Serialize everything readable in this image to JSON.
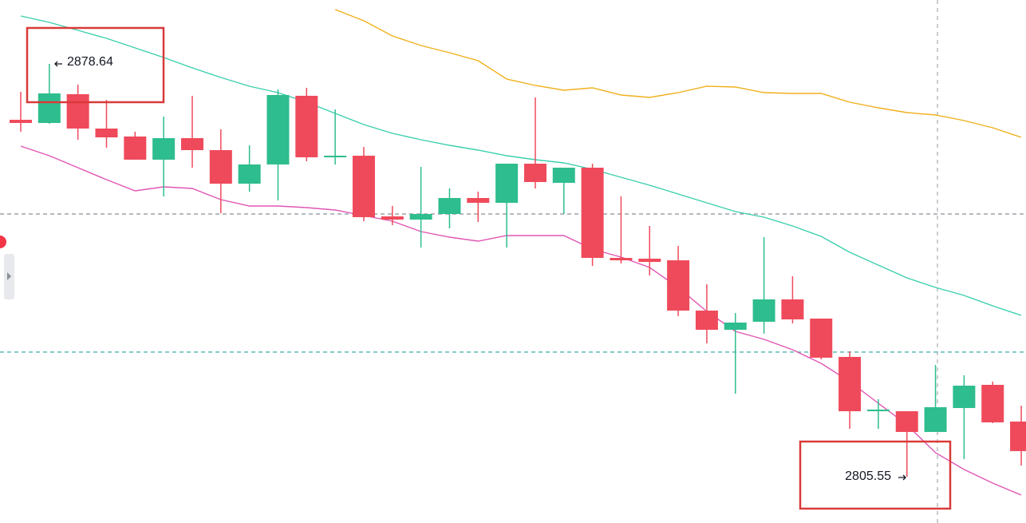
{
  "chart_data": {
    "type": "candlestick",
    "ylim": [
      2797.35,
      2889.95
    ],
    "up_color": "#2ebd8e",
    "down_color": "#ef4a5b",
    "open": [
      2868.74,
      2868.18,
      2873.27,
      2867.19,
      2865.78,
      2861.68,
      2865.49,
      2863.37,
      2857.43,
      2860.83,
      2872.99,
      2862.1,
      2862.38,
      2851.64,
      2851.07,
      2852.06,
      2854.89,
      2854.04,
      2860.97,
      2857.58,
      2860.26,
      2844.29,
      2844.15,
      2843.86,
      2834.96,
      2831.56,
      2832.98,
      2836.94,
      2833.54,
      2826.76,
      2817.14,
      2817.14,
      2813.47,
      2817.71,
      2821.81,
      2815.31
    ],
    "high": [
      2873.69,
      2878.64,
      2874.96,
      2872.28,
      2866.62,
      2869.31,
      2872.99,
      2867.05,
      2864.22,
      2874.12,
      2874.4,
      2870.58,
      2863.94,
      2853.48,
      2860.4,
      2856.59,
      2856.02,
      2860.97,
      2872.7,
      2860.26,
      2860.97,
      2855.17,
      2849.94,
      2846.41,
      2839.62,
      2834.53,
      2847.96,
      2841.04,
      2833.54,
      2827.75,
      2819.26,
      2817.14,
      2825.34,
      2823.51,
      2822.38,
      2818.13
    ],
    "low": [
      2866.62,
      2868.04,
      2865.21,
      2863.8,
      2861.68,
      2855.17,
      2860.26,
      2852.2,
      2856.02,
      2854.47,
      2861.39,
      2860.83,
      2850.79,
      2850.08,
      2846.13,
      2849.52,
      2850.65,
      2846.13,
      2856.59,
      2852.06,
      2842.87,
      2843.3,
      2841.18,
      2833.97,
      2829.16,
      2820.25,
      2830.86,
      2832.7,
      2826.33,
      2814.03,
      2814.03,
      2805.55,
      2813.47,
      2808.66,
      2815.03,
      2807.53
    ],
    "close": [
      2868.18,
      2873.41,
      2867.19,
      2865.63,
      2861.68,
      2865.49,
      2863.37,
      2857.43,
      2860.83,
      2873.13,
      2862.1,
      2862.38,
      2851.5,
      2851.07,
      2852.06,
      2854.89,
      2854.04,
      2860.97,
      2857.72,
      2860.26,
      2844.29,
      2843.86,
      2843.58,
      2834.96,
      2831.56,
      2832.84,
      2836.94,
      2833.4,
      2826.62,
      2817.14,
      2817.43,
      2813.47,
      2817.85,
      2821.67,
      2815.17,
      2810.08
    ],
    "series": [
      {
        "type": "line",
        "color": "#3ccfae",
        "values": [
          2887.12,
          2885.99,
          2884.58,
          2883.16,
          2881.47,
          2879.77,
          2877.93,
          2876.24,
          2874.68,
          2873.55,
          2871.85,
          2869.88,
          2867.9,
          2866.34,
          2865.21,
          2864.22,
          2863.37,
          2862.38,
          2861.68,
          2861.11,
          2859.98,
          2858.57,
          2857.15,
          2855.6,
          2854.04,
          2852.49,
          2851.5,
          2849.94,
          2848.1,
          2845.28,
          2843.02,
          2840.75,
          2839.06,
          2837.64,
          2835.81,
          2834.11
        ]
      },
      {
        "type": "line",
        "color": "#e056b4",
        "values": [
          2864.08,
          2862.38,
          2860.26,
          2858.14,
          2856.16,
          2856.87,
          2856.59,
          2854.61,
          2853.48,
          2853.48,
          2853.19,
          2852.77,
          2851.78,
          2850.79,
          2848.95,
          2847.96,
          2847.26,
          2848.25,
          2848.25,
          2848.25,
          2845.84,
          2844.43,
          2842.59,
          2839.06,
          2834.82,
          2831.28,
          2829.87,
          2828.03,
          2825.63,
          2822.38,
          2818.56,
          2814.74,
          2809.79,
          2806.82,
          2804.42,
          2802.3
        ]
      },
      {
        "type": "line",
        "color": "#f0b01c",
        "values": [
          null,
          null,
          null,
          null,
          null,
          null,
          null,
          null,
          null,
          null,
          null,
          2888.25,
          2886.27,
          2883.59,
          2881.89,
          2880.62,
          2879.21,
          2875.95,
          2874.82,
          2873.98,
          2874.4,
          2873.13,
          2872.7,
          2873.55,
          2874.68,
          2874.54,
          2873.55,
          2873.41,
          2873.41,
          2871.85,
          2870.87,
          2870.02,
          2869.59,
          2868.6,
          2867.33,
          2865.63
        ]
      }
    ],
    "hlines": [
      {
        "value": 2852.06,
        "color": "#8a8f99"
      },
      {
        "value": 2827.61,
        "color": "#26a69a"
      }
    ],
    "extremes": {
      "high": 2878.64,
      "low": 2805.55
    }
  }
}
